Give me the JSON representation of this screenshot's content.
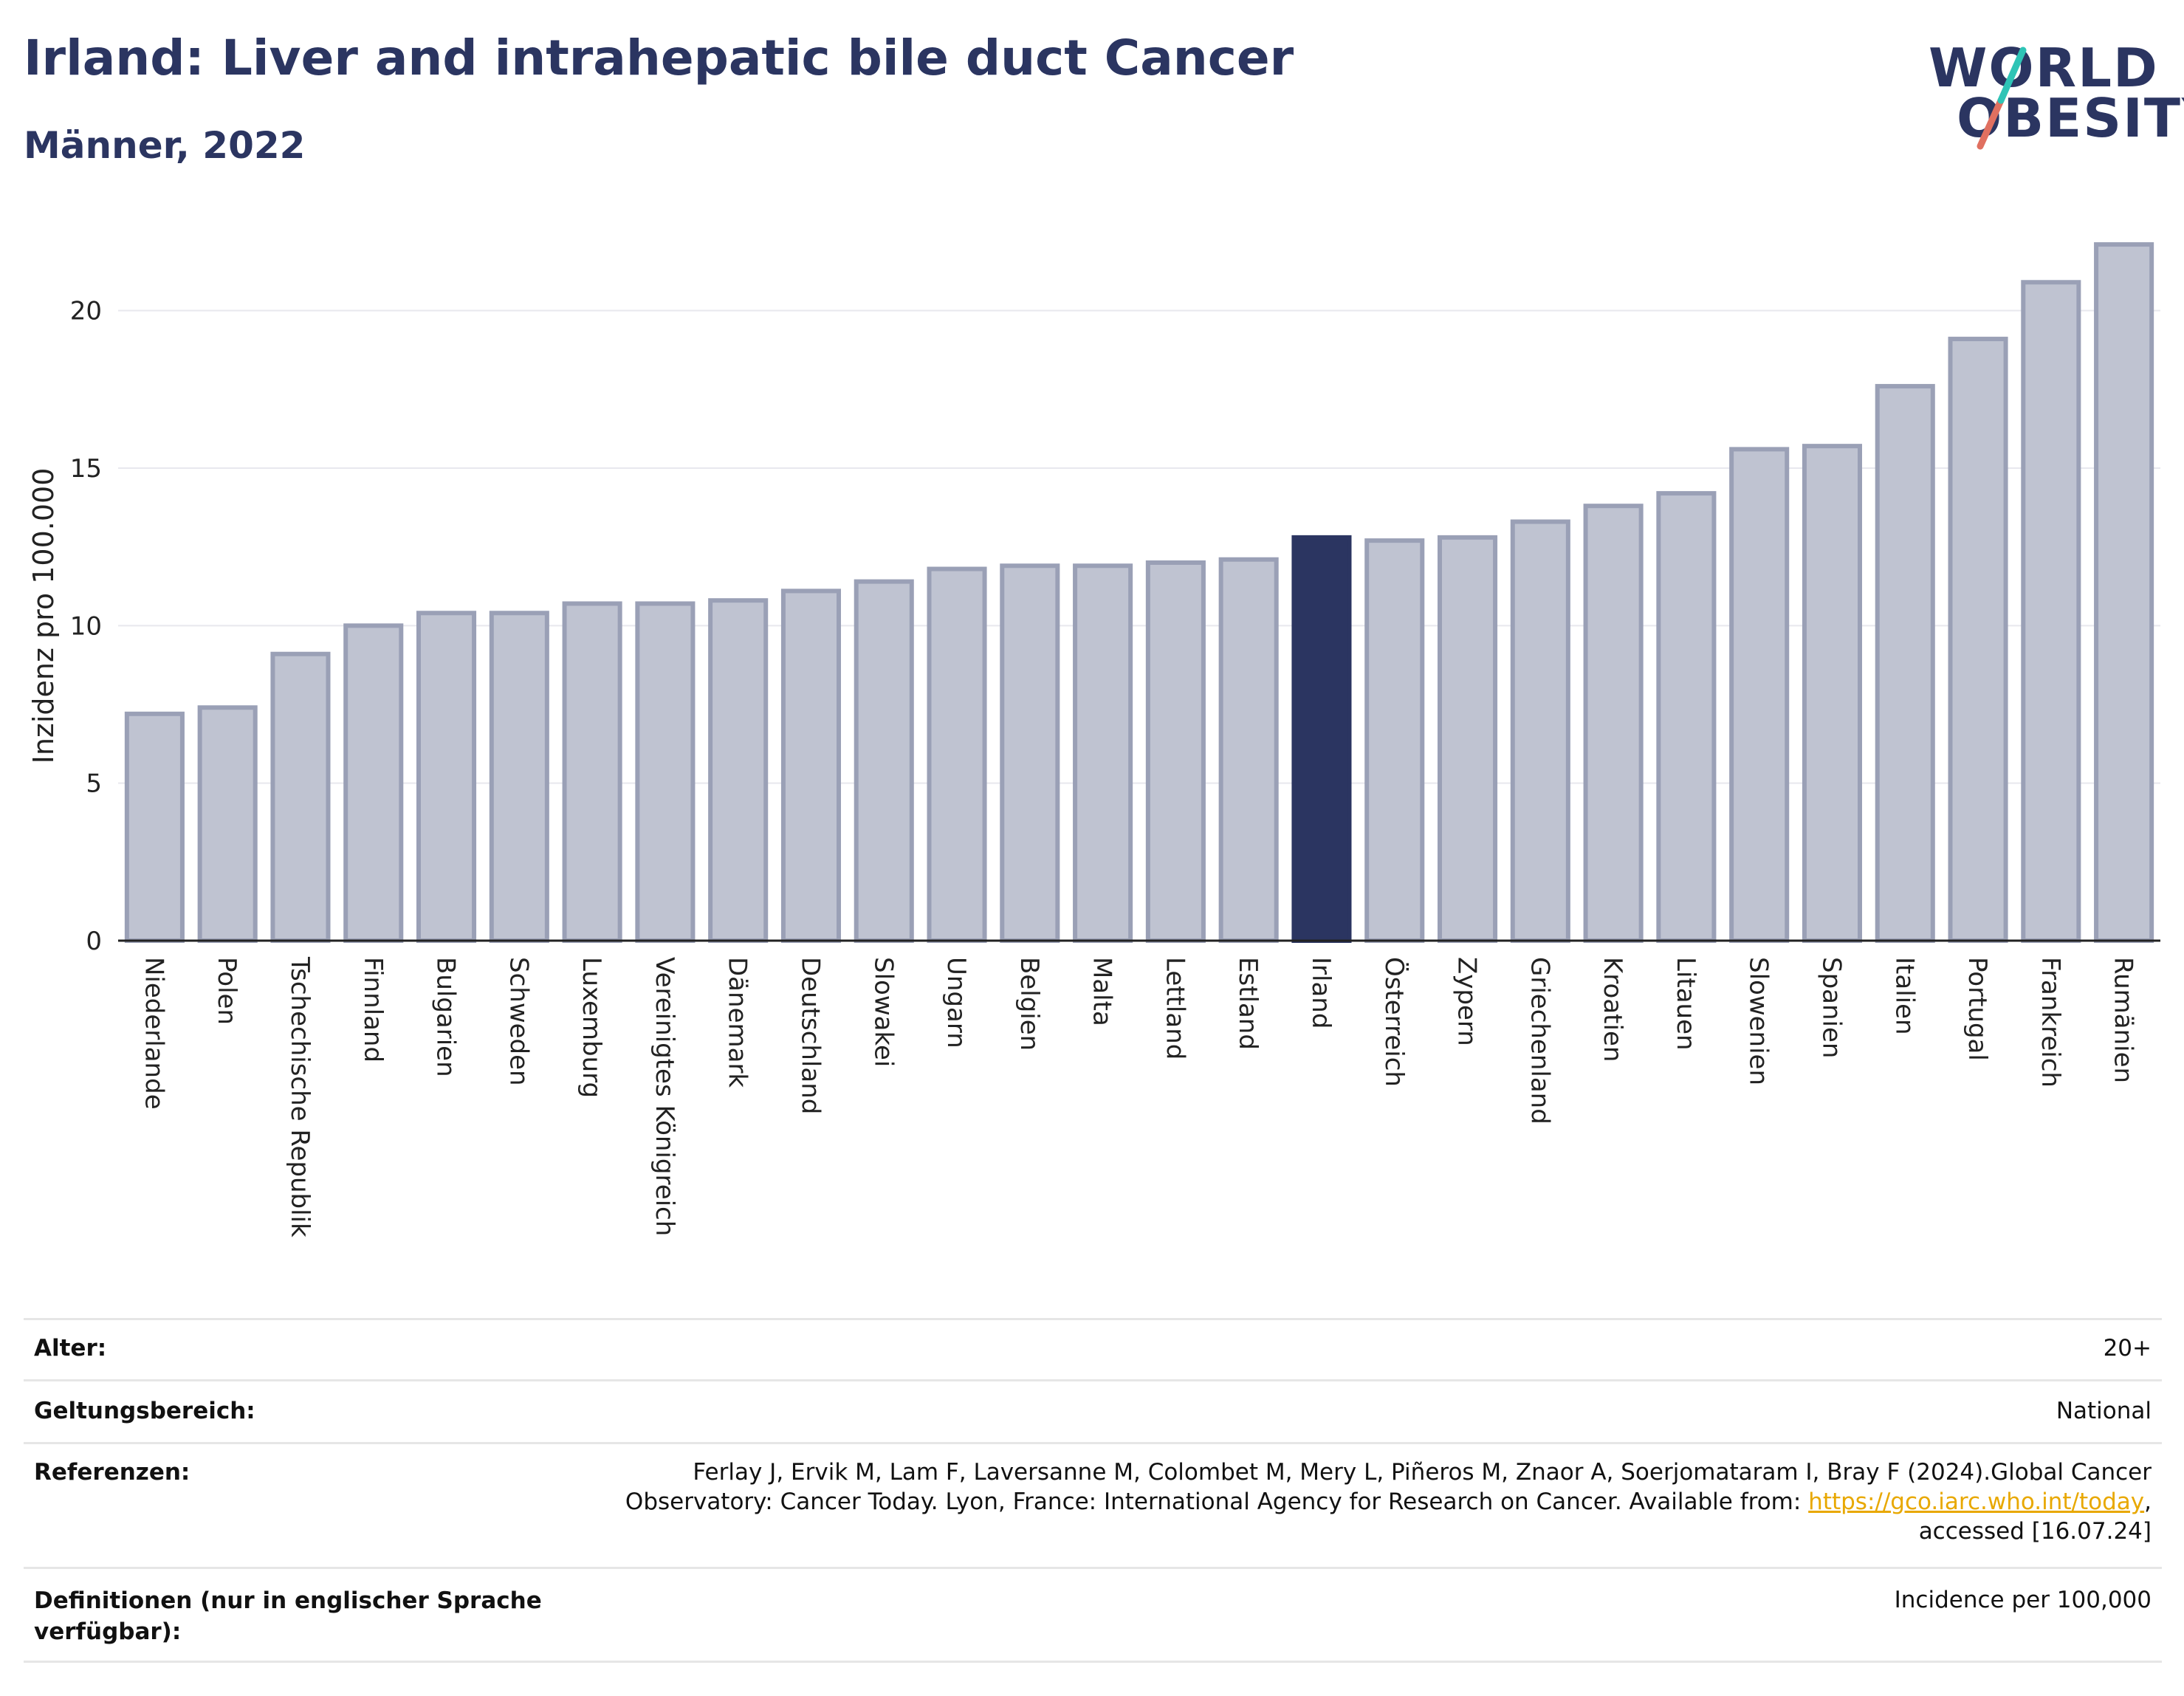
{
  "title": "Irland: Liver and intrahepatic bile duct Cancer",
  "subtitle": "Männer, 2022",
  "logo": {
    "line1": "WORLD",
    "line2": "OBESITY"
  },
  "colors": {
    "highlight": "#2b3561",
    "bar": "#bfc3d1",
    "bar_border": "#9aa0b6",
    "text": "#2b3561",
    "accent_teal": "#2ec4b6",
    "accent_red": "#e07060"
  },
  "chart_data": {
    "type": "bar",
    "ylabel": "Inzidenz pro 100.000",
    "ylim": [
      0,
      22.5
    ],
    "yticks": [
      0,
      5,
      10,
      15,
      20
    ],
    "grid": true,
    "highlight": "Irland",
    "categories": [
      "Niederlande",
      "Polen",
      "Tschechische Republik",
      "Finnland",
      "Bulgarien",
      "Schweden",
      "Luxemburg",
      "Vereinigtes Königreich",
      "Dänemark",
      "Deutschland",
      "Slowakei",
      "Ungarn",
      "Belgien",
      "Malta",
      "Lettland",
      "Estland",
      "Irland",
      "Österreich",
      "Zypern",
      "Griechenland",
      "Kroatien",
      "Litauen",
      "Slowenien",
      "Spanien",
      "Italien",
      "Portugal",
      "Frankreich",
      "Rumänien"
    ],
    "values": [
      7.2,
      7.4,
      9.1,
      10.0,
      10.4,
      10.4,
      10.7,
      10.7,
      10.8,
      11.1,
      11.4,
      11.8,
      11.9,
      11.9,
      12.0,
      12.1,
      12.8,
      12.7,
      12.8,
      13.3,
      13.8,
      14.2,
      15.6,
      15.7,
      17.6,
      19.1,
      20.9,
      22.1
    ]
  },
  "info": {
    "age_label": "Alter:",
    "age_value": "20+",
    "scope_label": "Geltungsbereich:",
    "scope_value": "National",
    "ref_label": "Referenzen:",
    "ref_line1": "Ferlay J, Ervik M, Lam F, Laversanne M, Colombet M, Mery L, Piñeros M, Znaor A, Soerjomataram I, Bray F (2024).Global Cancer",
    "ref_line2_pre": "Observatory: Cancer Today. Lyon, France: International Agency for Research on Cancer. Available from: ",
    "ref_link": "https://gco.iarc.who.int/today",
    "ref_line2_post": ",",
    "ref_line3": "accessed [16.07.24]",
    "def_label_1": "Definitionen (nur in englischer Sprache",
    "def_label_2": "verfügbar):",
    "def_value": "Incidence per 100,000"
  }
}
